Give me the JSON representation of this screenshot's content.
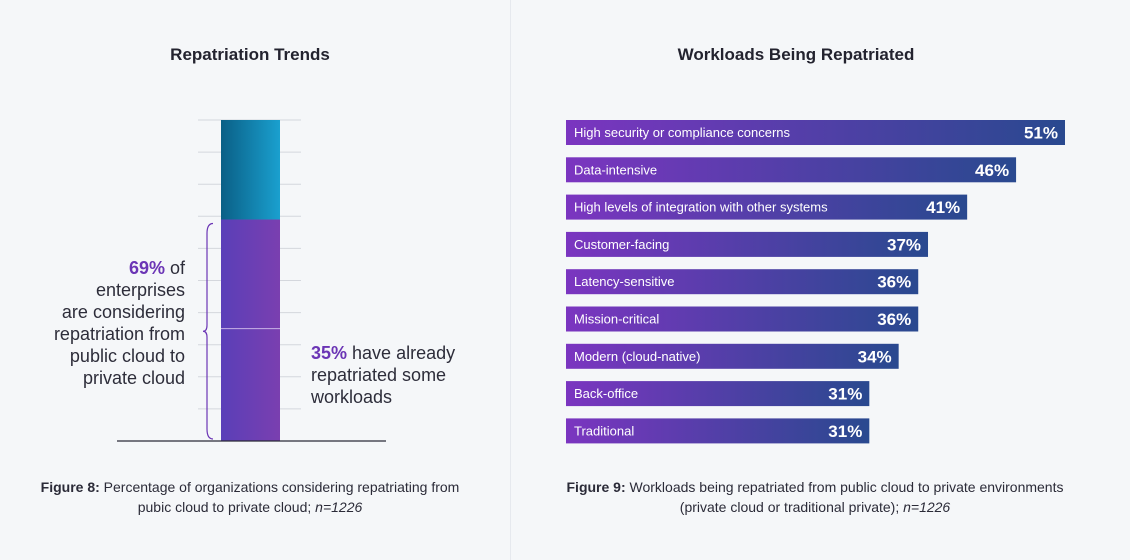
{
  "left": {
    "title": "Repatriation Trends",
    "annotation_considering": {
      "pct": "69%",
      "text_tail": " of",
      "lines": [
        "enterprises",
        "are considering",
        "repatriation from",
        "public cloud to",
        "private cloud"
      ]
    },
    "annotation_already": {
      "pct": "35%",
      "text_tail": " have already",
      "lines": [
        "repatriated some",
        "workloads"
      ]
    },
    "caption": {
      "label": "Figure 8:",
      "text": " Percentage of organizations considering repatriating from pubic cloud to private cloud;",
      "n": " n=1226"
    }
  },
  "right": {
    "title": "Workloads Being Repatriated",
    "caption": {
      "label": "Figure 9:",
      "text": " Workloads being repatriated from public cloud to private environments (private cloud or traditional private);",
      "n": " n=1226"
    }
  },
  "chart_data": [
    {
      "type": "bar",
      "orientation": "vertical-stacked",
      "title": "Repatriation Trends",
      "ylim": [
        0,
        100
      ],
      "segments": [
        {
          "name": "considering",
          "value": 69
        },
        {
          "name": "already repatriated",
          "value": 35
        }
      ],
      "colors": {
        "top": [
          "#0a5f86",
          "#1aa0cf"
        ],
        "considering": [
          "#5a3fb8",
          "#7a3fb0"
        ]
      },
      "grid": true
    },
    {
      "type": "bar",
      "orientation": "horizontal",
      "title": "Workloads Being Repatriated",
      "categories": [
        "High security or compliance concerns",
        "Data-intensive",
        "High levels of integration with other systems",
        "Customer-facing",
        "Latency-sensitive",
        "Mission-critical",
        "Modern (cloud-native)",
        "Back-office",
        "Traditional"
      ],
      "values": [
        51,
        46,
        41,
        37,
        36,
        36,
        34,
        31,
        31
      ],
      "value_labels": [
        "51%",
        "46%",
        "41%",
        "37%",
        "36%",
        "36%",
        "34%",
        "31%",
        "31%"
      ],
      "xlim": [
        0,
        51
      ],
      "colors": {
        "start": "#7b35c0",
        "end": "#29498f"
      }
    }
  ]
}
